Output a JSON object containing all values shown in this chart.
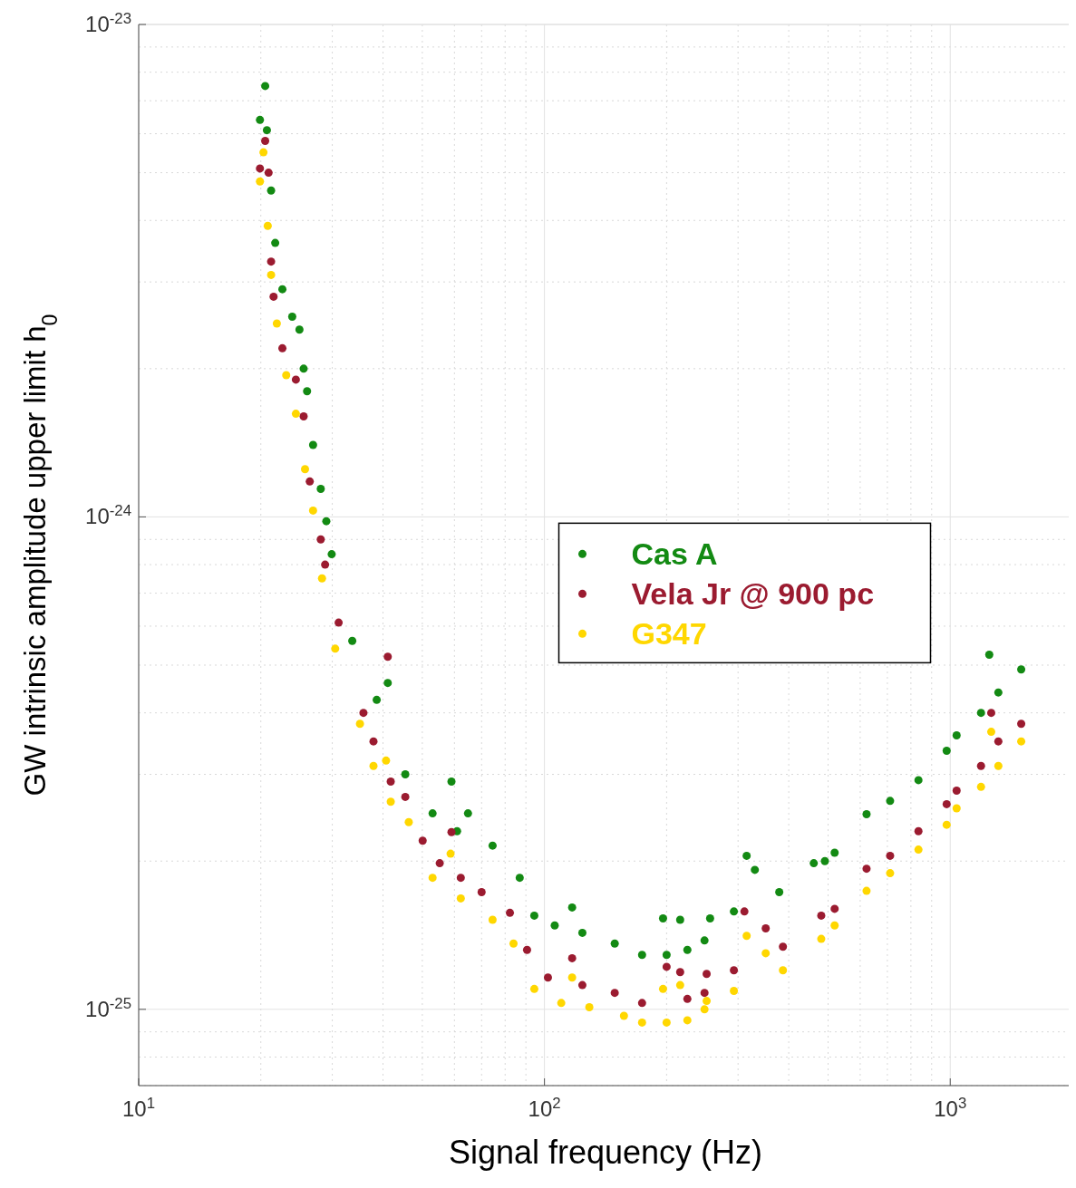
{
  "chart_data": {
    "type": "scatter",
    "xlabel": "Signal frequency (Hz)",
    "ylabel": "GW intrinsic amplitude upper limit h$_{0}$",
    "log": "xy",
    "grid": true,
    "legend": "right",
    "marker": "circle",
    "xlim": [
      10,
      2000
    ],
    "xticks": [
      {
        "value": 10,
        "label": "10$^{1}$"
      },
      {
        "value": 100,
        "label": "10$^{2}$"
      },
      {
        "value": 1000,
        "label": "10$^{3}$"
      }
    ],
    "ylim": [
      7e-26,
      1e-23
    ],
    "yticks": [
      {
        "value": 1e-25,
        "label": "10$^{-25}$"
      },
      {
        "value": 1e-24,
        "label": "10$^{-24}$"
      },
      {
        "value": 1e-23,
        "label": "10$^{-23}$"
      }
    ],
    "series": [
      {
        "name": "Cas A",
        "color": "#138a13",
        "x": [
          19.9,
          20.5,
          20.7,
          21.2,
          21.7,
          22.6,
          23.9,
          24.9,
          25.5,
          26.0,
          26.9,
          28.1,
          29.0,
          29.9,
          33.6,
          38.6,
          41.1,
          45.4,
          53.0,
          59.0,
          60.9,
          64.8,
          74.5,
          86.9,
          94.4,
          106,
          117,
          124,
          149,
          174,
          196,
          200,
          216,
          225,
          248,
          256,
          293,
          315,
          330,
          379,
          461,
          491,
          519,
          622,
          711,
          835,
          980,
          1037,
          1191,
          1248,
          1314,
          1496
        ],
        "values": [
          6.4e-24,
          7.5e-24,
          6.1e-24,
          4.6e-24,
          3.6e-24,
          2.9e-24,
          2.55e-24,
          2.4e-24,
          2e-24,
          1.8e-24,
          1.4e-24,
          1.14e-24,
          9.8e-25,
          8.4e-25,
          5.6e-25,
          4.25e-25,
          4.6e-25,
          3e-25,
          2.5e-25,
          2.9e-25,
          2.3e-25,
          2.5e-25,
          2.15e-25,
          1.85e-25,
          1.55e-25,
          1.48e-25,
          1.61e-25,
          1.43e-25,
          1.36e-25,
          1.29e-25,
          1.53e-25,
          1.29e-25,
          1.52e-25,
          1.32e-25,
          1.38e-25,
          1.53e-25,
          1.58e-25,
          2.05e-25,
          1.92e-25,
          1.73e-25,
          1.98e-25,
          2e-25,
          2.08e-25,
          2.49e-25,
          2.65e-25,
          2.92e-25,
          3.35e-25,
          3.6e-25,
          4e-25,
          5.25e-25,
          4.4e-25,
          4.9e-25
        ]
      },
      {
        "name": "Vela Jr @ 900 pc",
        "color": "#9b1b30",
        "x": [
          19.9,
          20.5,
          20.9,
          21.2,
          21.5,
          22.6,
          24.4,
          25.5,
          26.4,
          28.1,
          28.8,
          31.1,
          35.8,
          37.9,
          41.1,
          41.8,
          45.4,
          50.1,
          55.2,
          59.0,
          62.2,
          70.0,
          82.2,
          90.6,
          102,
          117,
          124,
          149,
          174,
          200,
          216,
          225,
          248,
          251,
          293,
          311,
          351,
          387,
          481,
          519,
          622,
          711,
          835,
          980,
          1037,
          1191,
          1262,
          1314,
          1496
        ],
        "values": [
          5.1e-24,
          5.8e-24,
          5e-24,
          3.3e-24,
          2.8e-24,
          2.2e-24,
          1.9e-24,
          1.6e-24,
          1.18e-24,
          9e-25,
          8e-25,
          6.1e-25,
          4e-25,
          3.5e-25,
          5.2e-25,
          2.9e-25,
          2.7e-25,
          2.2e-25,
          1.98e-25,
          2.29e-25,
          1.85e-25,
          1.73e-25,
          1.57e-25,
          1.32e-25,
          1.16e-25,
          1.27e-25,
          1.12e-25,
          1.08e-25,
          1.03e-25,
          1.22e-25,
          1.19e-25,
          1.05e-25,
          1.08e-25,
          1.18e-25,
          1.2e-25,
          1.58e-25,
          1.46e-25,
          1.34e-25,
          1.55e-25,
          1.6e-25,
          1.93e-25,
          2.05e-25,
          2.3e-25,
          2.61e-25,
          2.78e-25,
          3.12e-25,
          4e-25,
          3.5e-25,
          3.8e-25
        ]
      },
      {
        "name": "G347",
        "color": "#ffd700",
        "x": [
          19.9,
          20.3,
          20.8,
          21.2,
          21.9,
          23.1,
          24.4,
          25.7,
          26.9,
          28.3,
          30.5,
          35.1,
          37.9,
          40.7,
          41.8,
          46.3,
          53.0,
          58.7,
          62.2,
          74.5,
          83.9,
          94.4,
          110,
          117,
          129,
          157,
          174,
          196,
          200,
          216,
          225,
          248,
          251,
          293,
          315,
          351,
          387,
          481,
          519,
          622,
          711,
          835,
          980,
          1037,
          1191,
          1262,
          1314,
          1496
        ],
        "values": [
          4.8e-24,
          5.5e-24,
          3.9e-24,
          3.1e-24,
          2.47e-24,
          1.94e-24,
          1.62e-24,
          1.25e-24,
          1.03e-24,
          7.5e-25,
          5.4e-25,
          3.8e-25,
          3.12e-25,
          3.2e-25,
          2.64e-25,
          2.4e-25,
          1.85e-25,
          2.07e-25,
          1.68e-25,
          1.52e-25,
          1.36e-25,
          1.1e-25,
          1.03e-25,
          1.16e-25,
          1.01e-25,
          9.7e-26,
          9.4e-26,
          1.1e-25,
          9.4e-26,
          1.12e-25,
          9.5e-26,
          1e-25,
          1.04e-25,
          1.09e-25,
          1.41e-25,
          1.3e-25,
          1.2e-25,
          1.39e-25,
          1.48e-25,
          1.74e-25,
          1.89e-25,
          2.11e-25,
          2.37e-25,
          2.56e-25,
          2.83e-25,
          3.66e-25,
          3.12e-25,
          3.5e-25
        ]
      }
    ]
  }
}
